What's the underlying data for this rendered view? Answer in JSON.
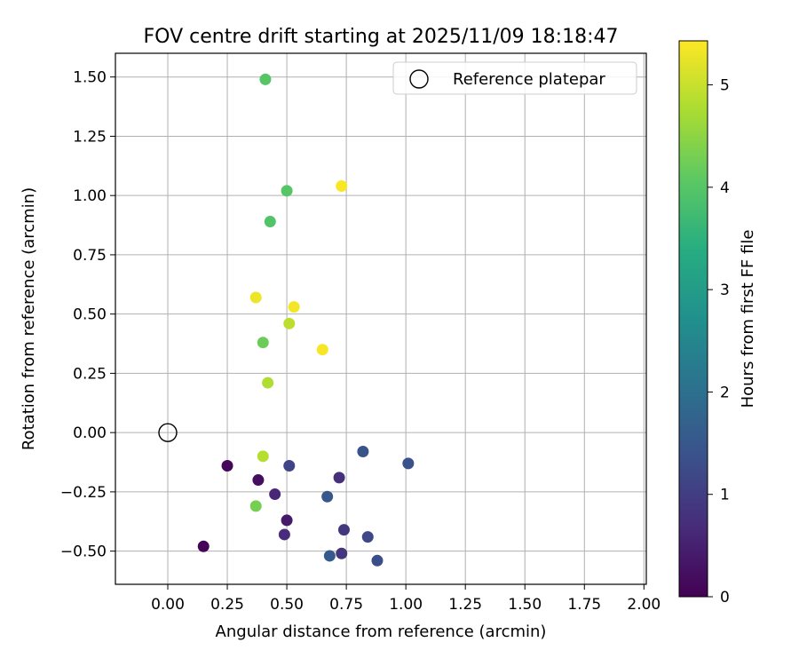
{
  "chart_data": {
    "type": "scatter",
    "title": "FOV centre drift starting at 2025/11/09 18:18:47",
    "xlabel": "Angular distance from reference (arcmin)",
    "ylabel": "Rotation from reference (arcmin)",
    "xlim": [
      -0.22,
      2.01
    ],
    "ylim": [
      -0.64,
      1.6
    ],
    "xticks": [
      0.0,
      0.25,
      0.5,
      0.75,
      1.0,
      1.25,
      1.5,
      1.75,
      2.0
    ],
    "xtick_labels": [
      "0.00",
      "0.25",
      "0.50",
      "0.75",
      "1.00",
      "1.25",
      "1.50",
      "1.75",
      "2.00"
    ],
    "yticks": [
      -0.5,
      -0.25,
      0.0,
      0.25,
      0.5,
      0.75,
      1.0,
      1.25,
      1.5
    ],
    "ytick_labels": [
      "−0.50",
      "−0.25",
      "0.00",
      "0.25",
      "0.50",
      "0.75",
      "1.00",
      "1.25",
      "1.50"
    ],
    "grid": true,
    "legend": {
      "placement": "upper-right",
      "entries": [
        "Reference platepar"
      ]
    },
    "reference_point": {
      "x": 0.0,
      "y": 0.0,
      "label": "Reference platepar"
    },
    "colorbar": {
      "label": "Hours from first FF file",
      "range": [
        0,
        5.43
      ],
      "ticks": [
        0,
        1,
        2,
        3,
        4,
        5
      ],
      "tick_labels": [
        "0",
        "1",
        "2",
        "3",
        "4",
        "5"
      ],
      "colormap": "viridis"
    },
    "points": [
      {
        "x": 0.15,
        "y": -0.48,
        "hours": 0.05
      },
      {
        "x": 0.25,
        "y": -0.14,
        "hours": 0.1
      },
      {
        "x": 0.38,
        "y": -0.2,
        "hours": 0.2
      },
      {
        "x": 0.5,
        "y": -0.37,
        "hours": 0.4
      },
      {
        "x": 0.45,
        "y": -0.26,
        "hours": 0.6
      },
      {
        "x": 0.49,
        "y": -0.43,
        "hours": 0.7
      },
      {
        "x": 0.72,
        "y": -0.19,
        "hours": 0.75
      },
      {
        "x": 0.73,
        "y": -0.51,
        "hours": 0.85
      },
      {
        "x": 0.74,
        "y": -0.41,
        "hours": 0.9
      },
      {
        "x": 0.51,
        "y": -0.14,
        "hours": 1.1
      },
      {
        "x": 0.84,
        "y": -0.44,
        "hours": 1.2
      },
      {
        "x": 0.88,
        "y": -0.54,
        "hours": 1.3
      },
      {
        "x": 1.01,
        "y": -0.13,
        "hours": 1.35
      },
      {
        "x": 0.82,
        "y": -0.08,
        "hours": 1.4
      },
      {
        "x": 0.67,
        "y": -0.27,
        "hours": 1.5
      },
      {
        "x": 0.68,
        "y": -0.52,
        "hours": 1.55
      },
      {
        "x": 0.41,
        "y": 1.49,
        "hours": 4.0
      },
      {
        "x": 0.5,
        "y": 1.02,
        "hours": 4.0
      },
      {
        "x": 0.43,
        "y": 0.89,
        "hours": 3.95
      },
      {
        "x": 0.4,
        "y": 0.38,
        "hours": 4.2
      },
      {
        "x": 0.37,
        "y": -0.31,
        "hours": 4.3
      },
      {
        "x": 0.42,
        "y": 0.21,
        "hours": 4.8
      },
      {
        "x": 0.4,
        "y": -0.1,
        "hours": 4.85
      },
      {
        "x": 0.51,
        "y": 0.46,
        "hours": 4.9
      },
      {
        "x": 0.37,
        "y": 0.57,
        "hours": 5.3
      },
      {
        "x": 0.53,
        "y": 0.53,
        "hours": 5.35
      },
      {
        "x": 0.65,
        "y": 0.35,
        "hours": 5.38
      },
      {
        "x": 0.73,
        "y": 1.04,
        "hours": 5.4
      }
    ]
  }
}
